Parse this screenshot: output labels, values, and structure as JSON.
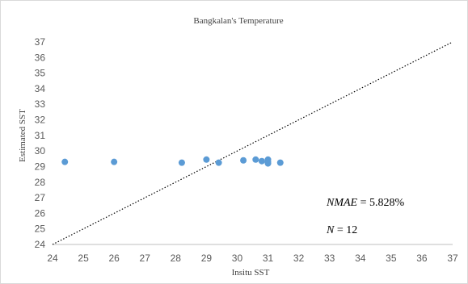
{
  "chart_data": {
    "type": "scatter",
    "title": "Bangkalan's Temperature",
    "xlabel": "Insitu SST",
    "ylabel": "Estimated SST",
    "xlim": [
      24,
      37
    ],
    "ylim": [
      24,
      37
    ],
    "xticks": [
      "24",
      "25",
      "26",
      "27",
      "28",
      "29",
      "30",
      "31",
      "32",
      "33",
      "34",
      "35",
      "36",
      "37"
    ],
    "yticks": [
      "24",
      "25",
      "26",
      "27",
      "28",
      "29",
      "30",
      "31",
      "32",
      "33",
      "34",
      "35",
      "36",
      "37"
    ],
    "grid": false,
    "reference_line": {
      "style": "dotted",
      "from": [
        24,
        24
      ],
      "to": [
        37,
        37
      ]
    },
    "series": [
      {
        "color": "#5b9bd5",
        "points": [
          {
            "x": 24.4,
            "y": 29.3
          },
          {
            "x": 26.0,
            "y": 29.3
          },
          {
            "x": 28.2,
            "y": 29.25
          },
          {
            "x": 29.0,
            "y": 29.45
          },
          {
            "x": 29.4,
            "y": 29.25
          },
          {
            "x": 30.2,
            "y": 29.4
          },
          {
            "x": 30.6,
            "y": 29.45
          },
          {
            "x": 30.8,
            "y": 29.35
          },
          {
            "x": 31.0,
            "y": 29.45
          },
          {
            "x": 31.0,
            "y": 29.3
          },
          {
            "x": 31.0,
            "y": 29.2
          },
          {
            "x": 31.4,
            "y": 29.25
          }
        ]
      }
    ],
    "annotations": {
      "nmae_label": "NMAE",
      "nmae_value": " = 5.828%",
      "n_label": "N",
      "n_value": " = 12"
    }
  }
}
